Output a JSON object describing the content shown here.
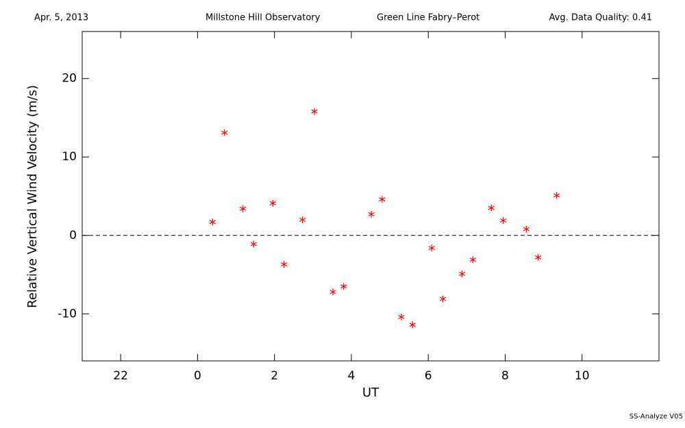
{
  "header": {
    "date": "Apr. 5, 2013",
    "observatory": "Millstone Hill Observatory",
    "instrument": "Green Line Fabry–Perot",
    "quality": "Avg. Data Quality: 0.41"
  },
  "footer": "SS-Analyze V05",
  "chart_data": {
    "type": "scatter",
    "x_label": "UT",
    "y_label": "Relative Vertical Wind Velocity (m/s)",
    "xlim": [
      -3,
      12
    ],
    "ylim": [
      -16,
      26
    ],
    "xticks": [
      {
        "value": -2,
        "label": "22"
      },
      0,
      2,
      4,
      6,
      8,
      10
    ],
    "yticks": [
      -10,
      0,
      10,
      20
    ],
    "reference_line": 0,
    "series": [
      {
        "color": "#ff0000",
        "x": [
          0.39,
          0.7,
          1.18,
          1.46,
          1.96,
          2.25,
          2.73,
          3.04,
          3.52,
          3.8,
          4.52,
          4.8,
          5.3,
          5.59,
          6.09,
          6.38,
          6.88,
          7.16,
          7.64,
          7.95,
          8.55,
          8.86,
          9.34
        ],
        "values": [
          1.7,
          13.1,
          3.4,
          -1.1,
          4.1,
          -3.7,
          2.0,
          15.8,
          -7.2,
          -6.5,
          2.7,
          4.6,
          -10.4,
          -11.4,
          -1.6,
          -8.1,
          -4.9,
          -3.1,
          3.5,
          1.9,
          0.8,
          -2.8,
          5.1
        ]
      }
    ]
  }
}
